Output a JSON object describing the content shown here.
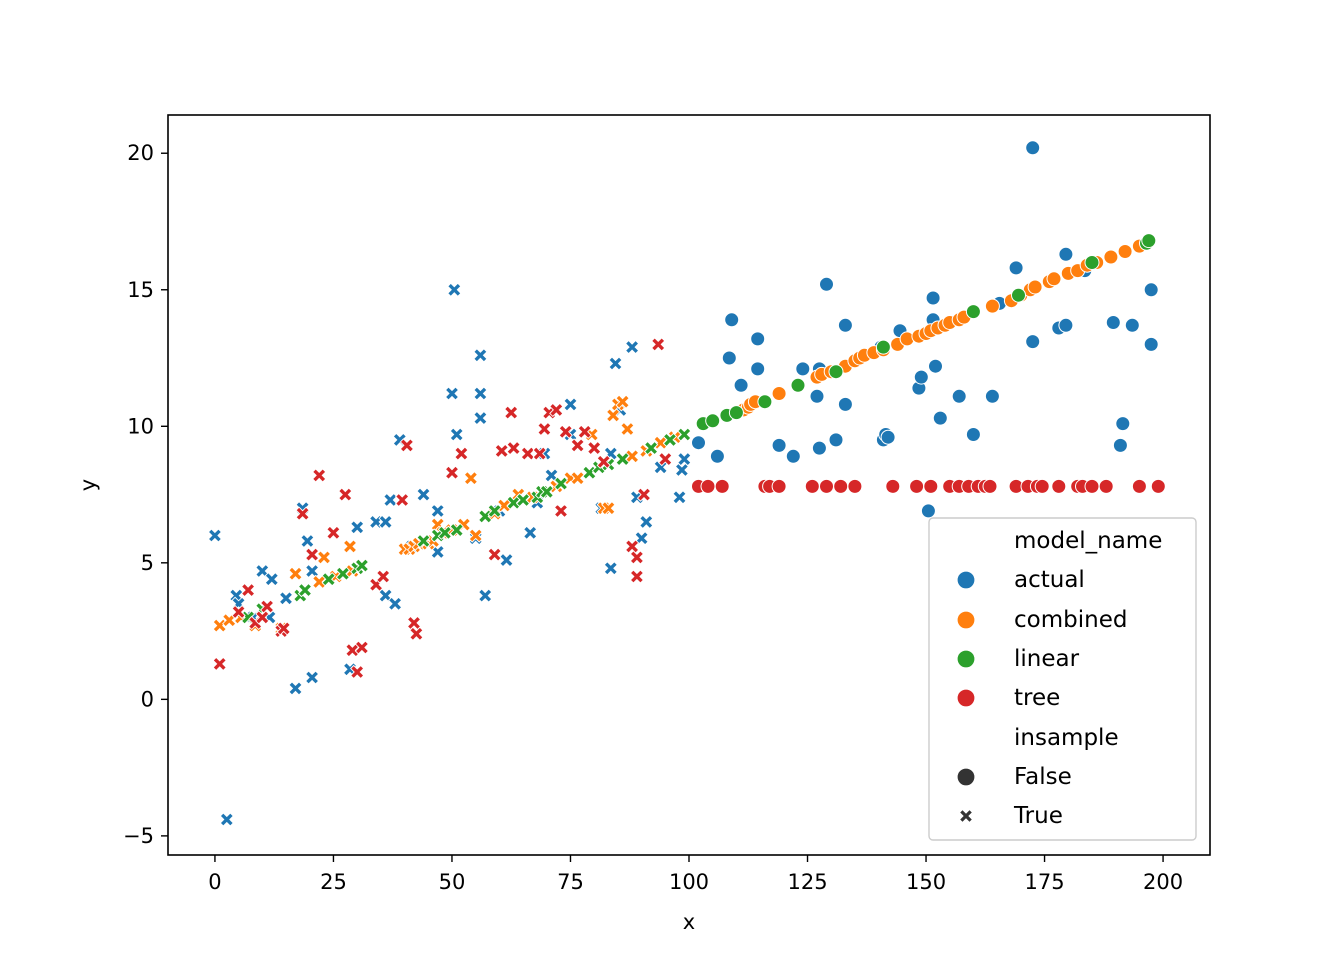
{
  "chart_data": {
    "type": "scatter",
    "title": "",
    "xlabel": "x",
    "ylabel": "y",
    "xlim": [
      -9.9,
      209.9
    ],
    "ylim": [
      -5.7,
      21.4
    ],
    "xticks": [
      0,
      25,
      50,
      75,
      100,
      125,
      150,
      175,
      200
    ],
    "xtick_labels": [
      "0",
      "25",
      "50",
      "75",
      "100",
      "125",
      "150",
      "175",
      "200"
    ],
    "yticks": [
      -5,
      0,
      5,
      10,
      15,
      20
    ],
    "ytick_labels": [
      "−5",
      "0",
      "5",
      "10",
      "15",
      "20"
    ],
    "grid": false,
    "legend": {
      "placement": "lower-right",
      "hue_title": "model_name",
      "style_title": "insample",
      "entries": [
        {
          "label": "actual",
          "color": "#1f77b4"
        },
        {
          "label": "combined",
          "color": "#ff7f0e"
        },
        {
          "label": "linear",
          "color": "#2ca02c"
        },
        {
          "label": "tree",
          "color": "#d62728"
        }
      ],
      "style_entries": [
        {
          "label": "False",
          "marker": "circle"
        },
        {
          "label": "True",
          "marker": "x"
        }
      ]
    },
    "colors": {
      "actual": "#1f77b4",
      "combined": "#ff7f0e",
      "linear": "#2ca02c",
      "tree": "#d62728",
      "style_marker": "#333333"
    },
    "series": [
      {
        "name": "actual",
        "insample_false": [
          [
            102,
            9.4
          ],
          [
            106,
            8.9
          ],
          [
            108.5,
            12.5
          ],
          [
            109,
            13.9
          ],
          [
            111,
            11.5
          ],
          [
            114.5,
            13.2
          ],
          [
            114.5,
            12.1
          ],
          [
            119,
            9.3
          ],
          [
            122,
            8.9
          ],
          [
            124,
            12.1
          ],
          [
            127,
            11.1
          ],
          [
            127.5,
            9.2
          ],
          [
            127.5,
            12.1
          ],
          [
            129,
            15.2
          ],
          [
            131,
            9.5
          ],
          [
            133,
            13.7
          ],
          [
            133,
            10.8
          ],
          [
            140.5,
            12.9
          ],
          [
            141,
            9.5
          ],
          [
            141.5,
            9.7
          ],
          [
            142,
            9.6
          ],
          [
            144.5,
            13.5
          ],
          [
            148.5,
            11.4
          ],
          [
            149,
            11.8
          ],
          [
            150.5,
            6.9
          ],
          [
            151.5,
            14.7
          ],
          [
            151.5,
            13.9
          ],
          [
            152,
            12.2
          ],
          [
            153,
            10.3
          ],
          [
            157,
            11.1
          ],
          [
            160,
            9.7
          ],
          [
            164,
            11.1
          ],
          [
            165.5,
            14.5
          ],
          [
            169,
            15.8
          ],
          [
            172.5,
            20.2
          ],
          [
            172.5,
            13.1
          ],
          [
            178,
            13.6
          ],
          [
            179.5,
            16.3
          ],
          [
            179.5,
            13.7
          ],
          [
            183.5,
            15.7
          ],
          [
            189.5,
            13.8
          ],
          [
            191,
            9.3
          ],
          [
            191.5,
            10.1
          ],
          [
            193.5,
            13.7
          ],
          [
            197.5,
            13
          ],
          [
            197.5,
            15
          ]
        ],
        "insample_true": [
          [
            0,
            6
          ],
          [
            2.5,
            -4.4
          ],
          [
            4.5,
            3.8
          ],
          [
            5,
            3.5
          ],
          [
            8,
            3
          ],
          [
            10,
            4.7
          ],
          [
            11.5,
            3
          ],
          [
            12,
            4.4
          ],
          [
            15,
            3.7
          ],
          [
            17,
            0.4
          ],
          [
            18.5,
            7
          ],
          [
            19.5,
            5.8
          ],
          [
            20.5,
            4.7
          ],
          [
            20.5,
            0.8
          ],
          [
            28.5,
            1.1
          ],
          [
            30,
            6.3
          ],
          [
            34,
            6.5
          ],
          [
            36,
            6.5
          ],
          [
            36,
            3.8
          ],
          [
            37,
            7.3
          ],
          [
            38,
            3.5
          ],
          [
            39,
            9.5
          ],
          [
            41.5,
            5.6
          ],
          [
            44,
            7.5
          ],
          [
            47,
            6.9
          ],
          [
            47,
            5.4
          ],
          [
            50,
            11.2
          ],
          [
            50.5,
            15
          ],
          [
            51,
            9.7
          ],
          [
            55,
            5.9
          ],
          [
            56,
            12.6
          ],
          [
            56,
            11.2
          ],
          [
            56,
            10.3
          ],
          [
            57,
            3.8
          ],
          [
            60,
            6.9
          ],
          [
            61.5,
            5.1
          ],
          [
            66.5,
            6.1
          ],
          [
            68,
            7.2
          ],
          [
            69.5,
            9
          ],
          [
            71,
            8.2
          ],
          [
            75,
            10.8
          ],
          [
            75,
            9.7
          ],
          [
            81.5,
            7
          ],
          [
            83.5,
            4.8
          ],
          [
            83.5,
            9
          ],
          [
            84.5,
            12.3
          ],
          [
            85.5,
            10.6
          ],
          [
            88,
            12.9
          ],
          [
            89,
            7.4
          ],
          [
            90,
            5.9
          ],
          [
            91,
            6.5
          ],
          [
            94,
            8.5
          ],
          [
            98,
            7.4
          ],
          [
            98.5,
            8.4
          ],
          [
            99,
            8.8
          ]
        ]
      },
      {
        "name": "combined",
        "insample_false": [
          [
            110,
            10.5
          ],
          [
            111.5,
            10.6
          ],
          [
            112.5,
            10.7
          ],
          [
            113,
            10.8
          ],
          [
            114,
            10.9
          ],
          [
            119,
            11.2
          ],
          [
            127,
            11.8
          ],
          [
            128,
            11.9
          ],
          [
            130,
            12
          ],
          [
            133,
            12.2
          ],
          [
            135,
            12.4
          ],
          [
            136,
            12.5
          ],
          [
            137,
            12.6
          ],
          [
            139,
            12.7
          ],
          [
            141,
            12.8
          ],
          [
            144,
            13
          ],
          [
            146,
            13.2
          ],
          [
            148.5,
            13.3
          ],
          [
            150,
            13.4
          ],
          [
            151,
            13.5
          ],
          [
            152.5,
            13.6
          ],
          [
            154,
            13.7
          ],
          [
            155,
            13.8
          ],
          [
            157,
            13.9
          ],
          [
            158,
            14
          ],
          [
            164,
            14.4
          ],
          [
            168,
            14.6
          ],
          [
            170,
            14.8
          ],
          [
            172,
            15
          ],
          [
            173,
            15.1
          ],
          [
            176,
            15.3
          ],
          [
            177,
            15.4
          ],
          [
            180,
            15.6
          ],
          [
            182,
            15.7
          ],
          [
            184,
            15.9
          ],
          [
            186,
            16
          ],
          [
            189,
            16.2
          ],
          [
            192,
            16.4
          ],
          [
            195,
            16.6
          ]
        ],
        "insample_true": [
          [
            1,
            2.7
          ],
          [
            3,
            2.9
          ],
          [
            5.5,
            3
          ],
          [
            8.5,
            2.7
          ],
          [
            10,
            3.3
          ],
          [
            11,
            3.4
          ],
          [
            14,
            2.6
          ],
          [
            17,
            4.6
          ],
          [
            22,
            4.3
          ],
          [
            23,
            5.2
          ],
          [
            25.5,
            4.5
          ],
          [
            27,
            4.6
          ],
          [
            28.5,
            5.6
          ],
          [
            29,
            4.7
          ],
          [
            30,
            4.8
          ],
          [
            40,
            5.5
          ],
          [
            41,
            5.5
          ],
          [
            42,
            5.6
          ],
          [
            43,
            5.7
          ],
          [
            45,
            5.7
          ],
          [
            46,
            5.8
          ],
          [
            47,
            6.4
          ],
          [
            48,
            6.1
          ],
          [
            50,
            6.2
          ],
          [
            52.5,
            6.4
          ],
          [
            54,
            8.1
          ],
          [
            55,
            6
          ],
          [
            59,
            6.8
          ],
          [
            61,
            7.1
          ],
          [
            64,
            7.5
          ],
          [
            67,
            7.4
          ],
          [
            72,
            7.8
          ],
          [
            75,
            8.1
          ],
          [
            76.5,
            8.1
          ],
          [
            79.5,
            9.7
          ],
          [
            82,
            7
          ],
          [
            83,
            7
          ],
          [
            84,
            10.4
          ],
          [
            85,
            10.8
          ],
          [
            86,
            10.9
          ],
          [
            87,
            9.9
          ],
          [
            88,
            8.9
          ],
          [
            91,
            9.1
          ],
          [
            92,
            9.2
          ],
          [
            94,
            9.4
          ],
          [
            96,
            9.5
          ],
          [
            97,
            9.6
          ],
          [
            99,
            9.7
          ]
        ]
      },
      {
        "name": "linear",
        "insample_false": [
          [
            103,
            10.1
          ],
          [
            105,
            10.2
          ],
          [
            108,
            10.4
          ],
          [
            110,
            10.5
          ],
          [
            116,
            10.9
          ],
          [
            123,
            11.5
          ],
          [
            131,
            12
          ],
          [
            141,
            12.9
          ],
          [
            160,
            14.2
          ],
          [
            169.5,
            14.8
          ],
          [
            185,
            16
          ],
          [
            196.5,
            16.7
          ],
          [
            197,
            16.8
          ]
        ],
        "insample_true": [
          [
            7,
            3
          ],
          [
            10,
            3.3
          ],
          [
            18,
            3.8
          ],
          [
            19,
            4
          ],
          [
            24,
            4.4
          ],
          [
            27,
            4.6
          ],
          [
            30,
            4.8
          ],
          [
            31,
            4.9
          ],
          [
            44,
            5.8
          ],
          [
            47,
            6
          ],
          [
            48.5,
            6.1
          ],
          [
            51,
            6.2
          ],
          [
            57,
            6.7
          ],
          [
            59,
            6.9
          ],
          [
            63,
            7.2
          ],
          [
            65,
            7.3
          ],
          [
            68,
            7.4
          ],
          [
            69,
            7.6
          ],
          [
            70,
            7.6
          ],
          [
            73,
            7.9
          ],
          [
            79,
            8.3
          ],
          [
            81,
            8.5
          ],
          [
            83,
            8.6
          ],
          [
            86,
            8.8
          ],
          [
            92,
            9.2
          ],
          [
            96,
            9.5
          ],
          [
            99,
            9.7
          ]
        ]
      },
      {
        "name": "tree",
        "insample_false": [
          [
            102,
            7.8
          ],
          [
            104,
            7.8
          ],
          [
            107,
            7.8
          ],
          [
            116,
            7.8
          ],
          [
            117,
            7.8
          ],
          [
            119,
            7.8
          ],
          [
            126,
            7.8
          ],
          [
            129,
            7.8
          ],
          [
            132,
            7.8
          ],
          [
            135,
            7.8
          ],
          [
            143,
            7.8
          ],
          [
            148,
            7.8
          ],
          [
            151,
            7.8
          ],
          [
            155,
            7.8
          ],
          [
            157,
            7.8
          ],
          [
            159,
            7.8
          ],
          [
            161,
            7.8
          ],
          [
            162.5,
            7.8
          ],
          [
            163.5,
            7.8
          ],
          [
            169,
            7.8
          ],
          [
            171.5,
            7.8
          ],
          [
            173.5,
            7.8
          ],
          [
            174.5,
            7.8
          ],
          [
            178,
            7.8
          ],
          [
            182,
            7.8
          ],
          [
            183,
            7.8
          ],
          [
            185,
            7.8
          ],
          [
            188,
            7.8
          ],
          [
            195,
            7.8
          ],
          [
            199,
            7.8
          ]
        ],
        "insample_true": [
          [
            1,
            1.3
          ],
          [
            5,
            3.2
          ],
          [
            7,
            4
          ],
          [
            8.5,
            2.8
          ],
          [
            10,
            3
          ],
          [
            11,
            3.4
          ],
          [
            14,
            2.5
          ],
          [
            14.5,
            2.6
          ],
          [
            18.5,
            6.8
          ],
          [
            20.5,
            5.3
          ],
          [
            22,
            8.2
          ],
          [
            25,
            6.1
          ],
          [
            27.5,
            7.5
          ],
          [
            29,
            1.8
          ],
          [
            30,
            1
          ],
          [
            31,
            1.9
          ],
          [
            34,
            4.2
          ],
          [
            35.5,
            4.5
          ],
          [
            39.5,
            7.3
          ],
          [
            40.5,
            9.3
          ],
          [
            42,
            2.8
          ],
          [
            42.5,
            2.4
          ],
          [
            50,
            8.3
          ],
          [
            52,
            9
          ],
          [
            59,
            5.3
          ],
          [
            60.5,
            9.1
          ],
          [
            62.5,
            10.5
          ],
          [
            63,
            9.2
          ],
          [
            66,
            9
          ],
          [
            68.5,
            9
          ],
          [
            69.5,
            9.9
          ],
          [
            70.5,
            10.5
          ],
          [
            72,
            10.6
          ],
          [
            73,
            6.9
          ],
          [
            74,
            9.8
          ],
          [
            76.5,
            9.3
          ],
          [
            78,
            9.8
          ],
          [
            80,
            9.2
          ],
          [
            82,
            8.7
          ],
          [
            88,
            5.6
          ],
          [
            89,
            5.2
          ],
          [
            89,
            4.5
          ],
          [
            90.5,
            7.5
          ],
          [
            93.5,
            13
          ],
          [
            95,
            8.8
          ]
        ]
      }
    ]
  }
}
